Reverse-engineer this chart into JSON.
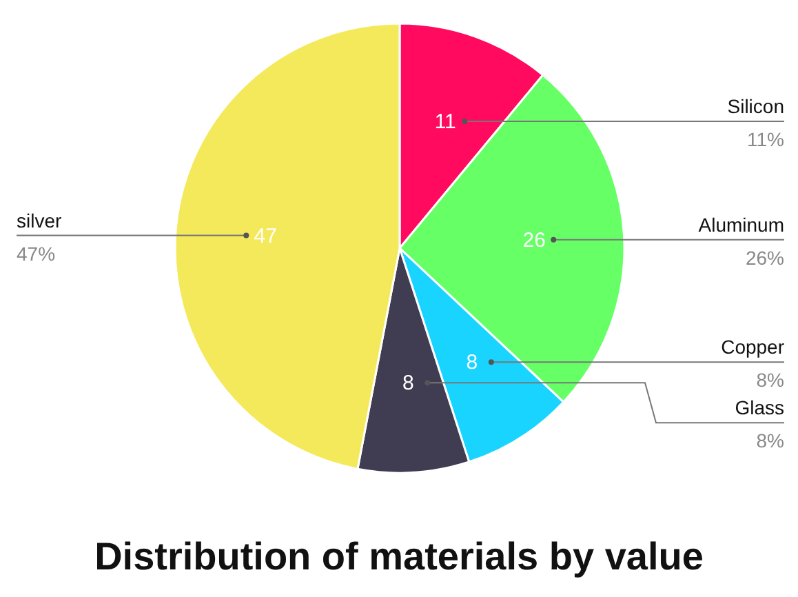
{
  "chart_data": {
    "type": "pie",
    "title": "Distribution of materials by value",
    "categories": [
      "Silicon",
      "Aluminum",
      "Copper",
      "Glass",
      "silver"
    ],
    "values": [
      11,
      26,
      8,
      8,
      47
    ],
    "value_labels": [
      "11",
      "26",
      "8",
      "8",
      "47"
    ],
    "annotations": [
      {
        "text": "11%",
        "x": "Silicon"
      },
      {
        "text": "26%",
        "x": "Aluminum"
      },
      {
        "text": "8%",
        "x": "Copper"
      },
      {
        "text": "8%",
        "x": "Glass"
      },
      {
        "text": "47%",
        "x": "silver"
      }
    ],
    "colors": [
      "#ff0a5e",
      "#66ff66",
      "#18d4ff",
      "#403c52",
      "#f4e95a"
    ],
    "legend": false
  }
}
